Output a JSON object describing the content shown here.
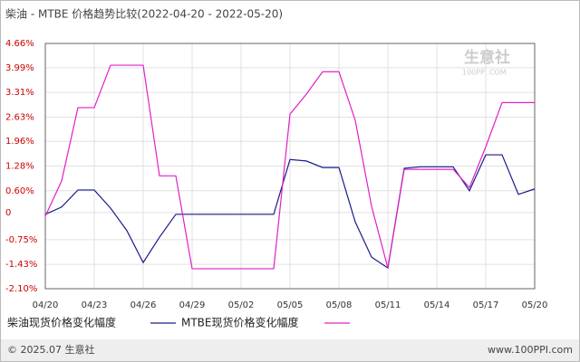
{
  "chart_data": {
    "type": "line",
    "title": "柴油 - MTBE 价格趋势比较(2022-04-20 - 2022-05-20)",
    "categories": [
      "04/20",
      null,
      null,
      "04/23",
      null,
      null,
      "04/26",
      null,
      null,
      "04/29",
      null,
      null,
      "05/02",
      null,
      null,
      "05/05",
      null,
      null,
      "05/08",
      null,
      null,
      "05/11",
      null,
      null,
      "05/14",
      null,
      null,
      "05/17",
      null,
      null,
      "05/20"
    ],
    "series": [
      {
        "name": "柴油现货价格变化幅度",
        "color": "#1a1a8c",
        "values": [
          -0.05,
          0.15,
          0.62,
          0.62,
          0.12,
          -0.5,
          -1.38,
          -0.68,
          -0.05,
          -0.05,
          -0.05,
          -0.05,
          -0.05,
          -0.05,
          -0.05,
          1.46,
          1.42,
          1.24,
          1.24,
          -0.26,
          -1.23,
          -1.53,
          1.22,
          1.26,
          1.26,
          1.26,
          0.6,
          1.59,
          1.59,
          0.5,
          0.65
        ]
      },
      {
        "name": "MTBE现货价格变化幅度",
        "color": "#e020c8",
        "values": [
          -0.1,
          0.87,
          2.89,
          2.89,
          4.06,
          4.06,
          4.06,
          1.01,
          1.01,
          -1.55,
          -1.55,
          -1.55,
          -1.55,
          -1.55,
          -1.55,
          2.71,
          3.26,
          3.88,
          3.88,
          2.54,
          0.17,
          -1.53,
          1.19,
          1.19,
          1.19,
          1.19,
          0.69,
          1.81,
          3.03,
          3.03,
          3.03
        ]
      }
    ],
    "ylim": [
      -2.1,
      4.66
    ],
    "yticks": [
      {
        "value": 4.66,
        "label": "4.66%"
      },
      {
        "value": 3.99,
        "label": "3.99%"
      },
      {
        "value": 3.31,
        "label": "3.31%"
      },
      {
        "value": 2.63,
        "label": "2.63%"
      },
      {
        "value": 1.96,
        "label": "1.96%"
      },
      {
        "value": 1.28,
        "label": "1.28%"
      },
      {
        "value": 0.6,
        "label": "0.60%"
      },
      0,
      {
        "value": -0.75,
        "label": "-0.75%"
      },
      {
        "value": -1.43,
        "label": "-1.43%"
      },
      {
        "value": -2.1,
        "label": "-2.10%"
      }
    ],
    "grid": true,
    "watermark": [
      "生意社",
      "100PPI.COM"
    ],
    "footer": {
      "left": "© 2025.07 生意社",
      "right": "www.100PPI.com"
    }
  }
}
